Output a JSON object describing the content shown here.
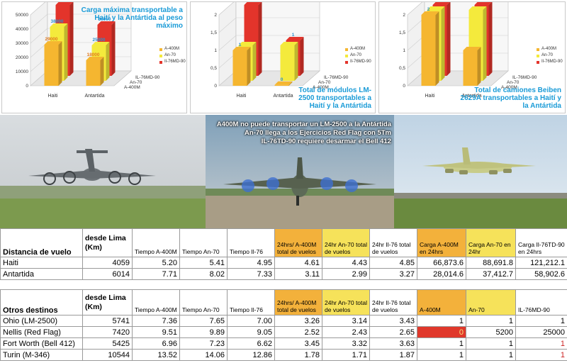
{
  "chart_data": [
    {
      "type": "bar",
      "title": "Carga máxima transportable a Haití y la Antártida al peso máximo",
      "categories": [
        "Haiti",
        "Antartida"
      ],
      "series": [
        {
          "name": "A-400M",
          "values": [
            29000,
            18000
          ]
        },
        {
          "name": "An-70",
          "values": [
            38000,
            25000
          ]
        },
        {
          "name": "Il-76MD-90",
          "values": [
            50000,
            36000
          ]
        }
      ],
      "value_labels": [
        [
          "29000",
          "18000"
        ],
        [
          "38000",
          "25000"
        ],
        [
          "50000",
          "36000"
        ]
      ],
      "ylim": [
        0,
        50000
      ],
      "yticks": [
        0,
        10000,
        20000,
        30000,
        40000,
        50000
      ],
      "ytick_labels": [
        "0",
        "10000",
        "20000",
        "30000",
        "40000",
        "50000"
      ],
      "legend_position": "right"
    },
    {
      "type": "bar",
      "title": "Total de módulos LM-2500 transportables a Haití y la Antártida",
      "categories": [
        "Haiti",
        "Antartida"
      ],
      "series": [
        {
          "name": "A-400M",
          "values": [
            1,
            0
          ]
        },
        {
          "name": "An-70",
          "values": [
            1,
            1
          ]
        },
        {
          "name": "Il-76MD-90",
          "values": [
            2,
            1
          ]
        }
      ],
      "value_labels": [
        [
          "1",
          "0"
        ],
        [
          "",
          ""
        ],
        [
          "2",
          "1"
        ]
      ],
      "ylim": [
        0,
        2
      ],
      "yticks": [
        0,
        0.5,
        1,
        1.5,
        2
      ],
      "ytick_labels": [
        "0",
        "0,5",
        "1",
        "1,5",
        "2"
      ],
      "legend_position": "right"
    },
    {
      "type": "bar",
      "title": "Total de camiones Beiben 2629A transportables a Haití y la Antártida",
      "categories": [
        "Haiti",
        "Antartida"
      ],
      "series": [
        {
          "name": "A-400M",
          "values": [
            2,
            1
          ]
        },
        {
          "name": "An-70",
          "values": [
            2,
            2
          ]
        },
        {
          "name": "Il-76MD-90",
          "values": [
            2,
            2
          ]
        }
      ],
      "value_labels": [
        [
          "2",
          ""
        ],
        [
          "",
          ""
        ],
        [
          "2",
          ""
        ]
      ],
      "ylim": [
        0,
        2
      ],
      "yticks": [
        0,
        0.5,
        1,
        1.5,
        2
      ],
      "ytick_labels": [
        "0",
        "0,5",
        "1",
        "1,5",
        "2"
      ],
      "legend_position": "right"
    }
  ],
  "chart_axis": {
    "depth_labels": [
      "IL-76MD-90",
      "An-70",
      "A-400M"
    ]
  },
  "colors": {
    "a400m": "#f5b630",
    "an70": "#f4ea3c",
    "il76": "#e3342b",
    "title": "#1a9bd7"
  },
  "caption": {
    "lines": [
      "A400M no puede transportar un LM-2500 a la Antártida",
      "An-70 llega a los Ejercicios Red Flag con 5Tm",
      "IL-76TD-90 requiere desarmar el Bell 412"
    ]
  },
  "photos": [
    {
      "icon": "a400m-aircraft-photo"
    },
    {
      "icon": "an70-aircraft-photo"
    },
    {
      "icon": "il76-aircraft-photo"
    }
  ],
  "table1": {
    "headers": [
      "Distancia de vuelo",
      "desde Lima (Km)",
      "Tiempo A-400M",
      "Tiempo An-70",
      "Tiempo Il-76",
      "24hrs/ A-400M total de vuelos",
      "24hr An-70 total de vuelos",
      "24hr Il-76 total de vuelos",
      "Carga A-400M en 24hrs",
      "Carga An-70  en 24hr",
      "Carga Il-76TD-90 en 24hrs"
    ],
    "rows": [
      [
        "Haiti",
        "4059",
        "5.20",
        "5.41",
        "4.95",
        "4.61",
        "4.43",
        "4.85",
        "66,873.6",
        "88,691.8",
        "121,212.1"
      ],
      [
        "Antartida",
        "6014",
        "7.71",
        "8.02",
        "7.33",
        "3.11",
        "2.99",
        "3.27",
        "28,014.6",
        "37,412.7",
        "58,902.6"
      ]
    ]
  },
  "table2": {
    "headers": [
      "Otros destinos",
      "desde Lima (Km)",
      "Tiempo A-400M",
      "Tiempo An-70",
      "Tiempo Il-76",
      "24hrs/ A-400M total de vuelos",
      "24hr An-70 total de vuelos",
      "24hr Il-76 total de vuelos",
      "A-400M",
      "An-70",
      "IL-76MD-90"
    ],
    "rows": [
      [
        "Ohio (LM-2500)",
        "5741",
        "7.36",
        "7.65",
        "7.00",
        "3.26",
        "3.14",
        "3.43",
        "1",
        "1",
        "1"
      ],
      [
        "Nellis (Red Flag)",
        "7420",
        "9.51",
        "9.89",
        "9.05",
        "2.52",
        "2.43",
        "2.65",
        "0",
        "5200",
        "25000"
      ],
      [
        "Fort Worth (Bell 412)",
        "5425",
        "6.96",
        "7.23",
        "6.62",
        "3.45",
        "3.32",
        "3.63",
        "1",
        "1",
        "1"
      ],
      [
        "Turin (M-346)",
        "10544",
        "13.52",
        "14.06",
        "12.86",
        "1.78",
        "1.71",
        "1.87",
        "1",
        "1",
        "1"
      ]
    ]
  }
}
